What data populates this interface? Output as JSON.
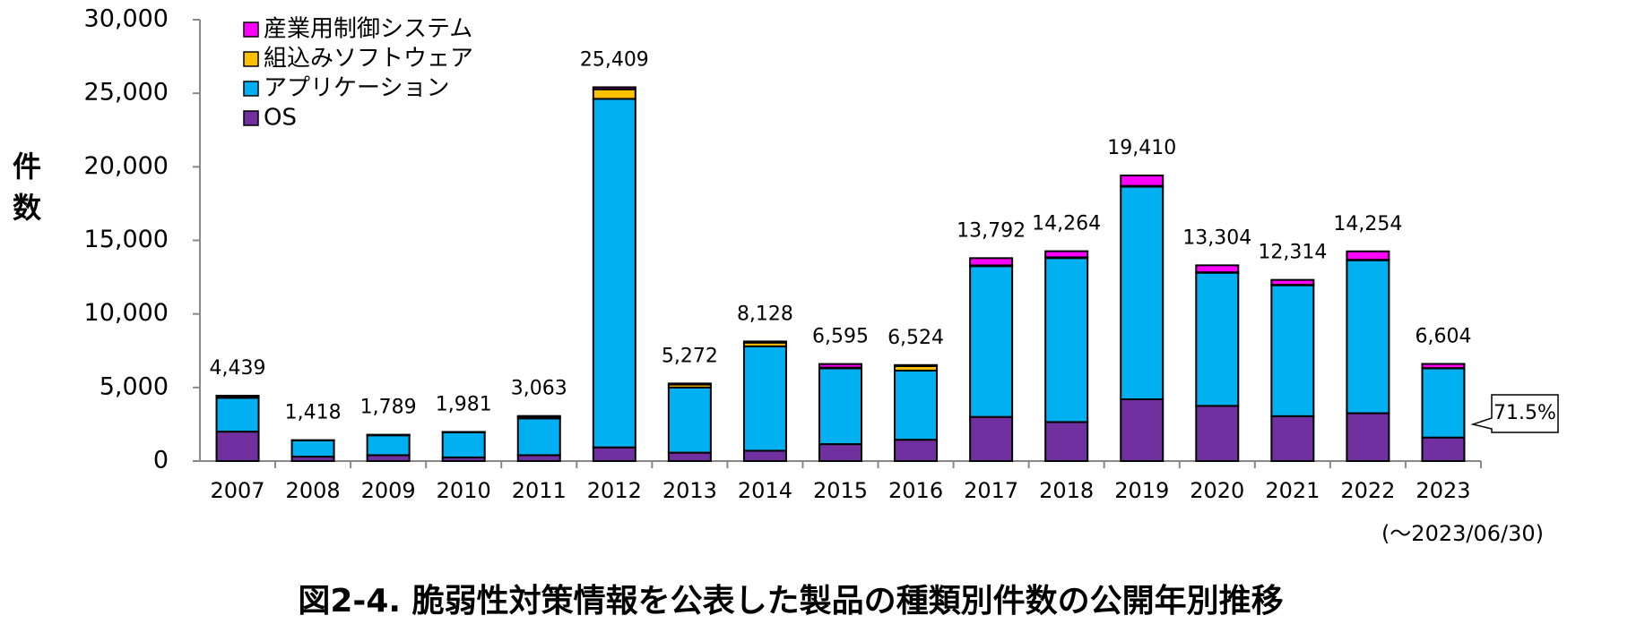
{
  "chart_data": {
    "type": "stacked_bar",
    "title": "図2-4. 脆弱性対策情報を公表した製品の種類別件数の公開年別推移",
    "y_label": "件数",
    "note": "(～2023/06/30)",
    "annotation": "71.5%",
    "categories": [
      "2007",
      "2008",
      "2009",
      "2010",
      "2011",
      "2012",
      "2013",
      "2014",
      "2015",
      "2016",
      "2017",
      "2018",
      "2019",
      "2020",
      "2021",
      "2022",
      "2023"
    ],
    "series": [
      {
        "name": "OS",
        "color": "#7030a0",
        "values": [
          2000,
          300,
          400,
          250,
          400,
          930,
          570,
          700,
          1150,
          1450,
          3000,
          2650,
          4200,
          3750,
          3050,
          3250,
          1600
        ]
      },
      {
        "name": "アプリケーション",
        "color": "#00b0f0",
        "values": [
          2300,
          1100,
          1350,
          1700,
          2500,
          23690,
          4430,
          7100,
          5150,
          4700,
          10250,
          11150,
          14450,
          9050,
          8900,
          10400,
          4700
        ]
      },
      {
        "name": "組込みソフトウェア",
        "color": "#ffc000",
        "values": [
          100,
          10,
          20,
          20,
          100,
          650,
          200,
          250,
          50,
          300,
          50,
          50,
          50,
          30,
          30,
          30,
          20
        ]
      },
      {
        "name": "産業用制御システム",
        "color": "#ff00ff",
        "values": [
          39,
          8,
          19,
          11,
          63,
          139,
          72,
          78,
          245,
          74,
          492,
          414,
          710,
          474,
          334,
          574,
          284
        ]
      }
    ],
    "totals": [
      4439,
      1418,
      1789,
      1981,
      3063,
      25409,
      5272,
      8128,
      6595,
      6524,
      13792,
      14264,
      19410,
      13304,
      12314,
      14254,
      6604
    ],
    "total_labels": [
      "4,439",
      "1,418",
      "1,789",
      "1,981",
      "3,063",
      "25,409",
      "5,272",
      "8,128",
      "6,595",
      "6,524",
      "13,792",
      "14,264",
      "19,410",
      "13,304",
      "12,314",
      "14,254",
      "6,604"
    ],
    "ylim": [
      0,
      30000
    ],
    "yticks": [
      0,
      {
        "value": 5000,
        "label": "5,000"
      },
      {
        "value": 10000,
        "label": "10,000"
      },
      {
        "value": 15000,
        "label": "15,000"
      },
      {
        "value": 20000,
        "label": "20,000"
      },
      {
        "value": 25000,
        "label": "25,000"
      },
      {
        "value": 30000,
        "label": "30,000"
      }
    ]
  }
}
